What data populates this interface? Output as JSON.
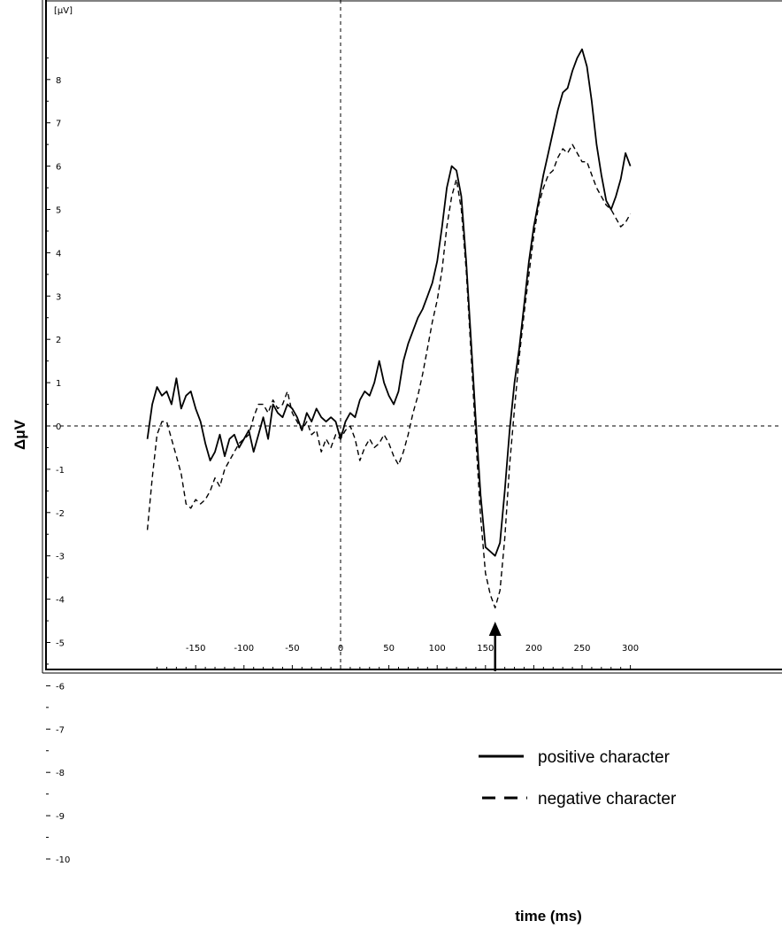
{
  "chart_data": {
    "type": "line",
    "title": "",
    "xlabel": "time (ms)",
    "ylabel": "ΔμV",
    "unit_label": "[μV]",
    "xlim": [
      -200,
      300
    ],
    "ylim": [
      -10.5,
      9.5
    ],
    "x_ticks": [
      -150,
      -100,
      -50,
      0,
      50,
      100,
      150,
      200,
      250,
      300
    ],
    "y_ticks": [
      8,
      7,
      6,
      5,
      4,
      3,
      2,
      1,
      0,
      -1,
      -2,
      -3,
      -4,
      -5,
      -6,
      -7,
      -8,
      -9,
      -10
    ],
    "reference_lines": {
      "x": 0,
      "y": 0
    },
    "legend_position": "bottom-right",
    "annotation": {
      "type": "arrow",
      "x": 160,
      "label": ""
    },
    "series": [
      {
        "name": "positive character",
        "style": "solid",
        "points": [
          [
            -200,
            -0.3
          ],
          [
            -195,
            0.5
          ],
          [
            -190,
            0.9
          ],
          [
            -185,
            0.7
          ],
          [
            -180,
            0.8
          ],
          [
            -175,
            0.5
          ],
          [
            -170,
            1.1
          ],
          [
            -165,
            0.4
          ],
          [
            -160,
            0.7
          ],
          [
            -155,
            0.8
          ],
          [
            -150,
            0.4
          ],
          [
            -145,
            0.1
          ],
          [
            -140,
            -0.4
          ],
          [
            -135,
            -0.8
          ],
          [
            -130,
            -0.6
          ],
          [
            -125,
            -0.2
          ],
          [
            -120,
            -0.7
          ],
          [
            -115,
            -0.3
          ],
          [
            -110,
            -0.2
          ],
          [
            -105,
            -0.5
          ],
          [
            -100,
            -0.3
          ],
          [
            -95,
            -0.1
          ],
          [
            -90,
            -0.6
          ],
          [
            -85,
            -0.2
          ],
          [
            -80,
            0.2
          ],
          [
            -75,
            -0.3
          ],
          [
            -70,
            0.5
          ],
          [
            -65,
            0.3
          ],
          [
            -60,
            0.2
          ],
          [
            -55,
            0.5
          ],
          [
            -50,
            0.4
          ],
          [
            -45,
            0.2
          ],
          [
            -40,
            -0.1
          ],
          [
            -35,
            0.3
          ],
          [
            -30,
            0.1
          ],
          [
            -25,
            0.4
          ],
          [
            -20,
            0.2
          ],
          [
            -15,
            0.1
          ],
          [
            -10,
            0.2
          ],
          [
            -5,
            0.1
          ],
          [
            0,
            -0.3
          ],
          [
            5,
            0.1
          ],
          [
            10,
            0.3
          ],
          [
            15,
            0.2
          ],
          [
            20,
            0.6
          ],
          [
            25,
            0.8
          ],
          [
            30,
            0.7
          ],
          [
            35,
            1.0
          ],
          [
            40,
            1.5
          ],
          [
            45,
            1.0
          ],
          [
            50,
            0.7
          ],
          [
            55,
            0.5
          ],
          [
            60,
            0.8
          ],
          [
            65,
            1.5
          ],
          [
            70,
            1.9
          ],
          [
            75,
            2.2
          ],
          [
            80,
            2.5
          ],
          [
            85,
            2.7
          ],
          [
            90,
            3.0
          ],
          [
            95,
            3.3
          ],
          [
            100,
            3.8
          ],
          [
            105,
            4.6
          ],
          [
            110,
            5.5
          ],
          [
            115,
            6.0
          ],
          [
            120,
            5.9
          ],
          [
            125,
            5.3
          ],
          [
            130,
            3.8
          ],
          [
            135,
            2.0
          ],
          [
            140,
            0.1
          ],
          [
            145,
            -1.6
          ],
          [
            150,
            -2.8
          ],
          [
            155,
            -2.9
          ],
          [
            160,
            -3.0
          ],
          [
            165,
            -2.7
          ],
          [
            170,
            -1.5
          ],
          [
            175,
            -0.1
          ],
          [
            180,
            1.0
          ],
          [
            185,
            1.8
          ],
          [
            190,
            2.8
          ],
          [
            195,
            3.8
          ],
          [
            200,
            4.6
          ],
          [
            205,
            5.2
          ],
          [
            210,
            5.8
          ],
          [
            215,
            6.3
          ],
          [
            220,
            6.8
          ],
          [
            225,
            7.3
          ],
          [
            230,
            7.7
          ],
          [
            235,
            7.8
          ],
          [
            240,
            8.2
          ],
          [
            245,
            8.5
          ],
          [
            250,
            8.7
          ],
          [
            255,
            8.3
          ],
          [
            260,
            7.5
          ],
          [
            265,
            6.5
          ],
          [
            270,
            5.8
          ],
          [
            275,
            5.2
          ],
          [
            280,
            5.0
          ],
          [
            285,
            5.3
          ],
          [
            290,
            5.7
          ],
          [
            295,
            6.3
          ],
          [
            300,
            6.0
          ]
        ]
      },
      {
        "name": "negative character",
        "style": "dashed",
        "points": [
          [
            -200,
            -2.4
          ],
          [
            -195,
            -1.2
          ],
          [
            -190,
            -0.2
          ],
          [
            -185,
            0.1
          ],
          [
            -180,
            0.1
          ],
          [
            -175,
            -0.3
          ],
          [
            -170,
            -0.7
          ],
          [
            -165,
            -1.1
          ],
          [
            -160,
            -1.8
          ],
          [
            -155,
            -1.9
          ],
          [
            -150,
            -1.7
          ],
          [
            -145,
            -1.8
          ],
          [
            -140,
            -1.7
          ],
          [
            -135,
            -1.5
          ],
          [
            -130,
            -1.2
          ],
          [
            -125,
            -1.4
          ],
          [
            -120,
            -1.0
          ],
          [
            -115,
            -0.8
          ],
          [
            -110,
            -0.6
          ],
          [
            -105,
            -0.4
          ],
          [
            -100,
            -0.3
          ],
          [
            -95,
            -0.2
          ],
          [
            -90,
            0.2
          ],
          [
            -85,
            0.5
          ],
          [
            -80,
            0.5
          ],
          [
            -75,
            0.3
          ],
          [
            -70,
            0.6
          ],
          [
            -65,
            0.4
          ],
          [
            -60,
            0.5
          ],
          [
            -55,
            0.8
          ],
          [
            -50,
            0.3
          ],
          [
            -45,
            0.1
          ],
          [
            -40,
            -0.1
          ],
          [
            -35,
            0.1
          ],
          [
            -30,
            -0.2
          ],
          [
            -25,
            -0.1
          ],
          [
            -20,
            -0.6
          ],
          [
            -15,
            -0.3
          ],
          [
            -10,
            -0.5
          ],
          [
            -5,
            -0.2
          ],
          [
            0,
            -0.3
          ],
          [
            5,
            -0.1
          ],
          [
            10,
            0.0
          ],
          [
            15,
            -0.3
          ],
          [
            20,
            -0.8
          ],
          [
            25,
            -0.5
          ],
          [
            30,
            -0.3
          ],
          [
            35,
            -0.5
          ],
          [
            40,
            -0.4
          ],
          [
            45,
            -0.2
          ],
          [
            50,
            -0.4
          ],
          [
            55,
            -0.7
          ],
          [
            60,
            -0.9
          ],
          [
            65,
            -0.6
          ],
          [
            70,
            -0.2
          ],
          [
            75,
            0.3
          ],
          [
            80,
            0.7
          ],
          [
            85,
            1.2
          ],
          [
            90,
            1.8
          ],
          [
            95,
            2.4
          ],
          [
            100,
            2.9
          ],
          [
            105,
            3.6
          ],
          [
            110,
            4.6
          ],
          [
            115,
            5.3
          ],
          [
            120,
            5.7
          ],
          [
            125,
            5.0
          ],
          [
            130,
            3.6
          ],
          [
            135,
            1.7
          ],
          [
            140,
            -0.3
          ],
          [
            145,
            -2.1
          ],
          [
            150,
            -3.4
          ],
          [
            155,
            -3.9
          ],
          [
            160,
            -4.2
          ],
          [
            165,
            -3.8
          ],
          [
            170,
            -2.6
          ],
          [
            175,
            -0.9
          ],
          [
            180,
            0.4
          ],
          [
            185,
            1.6
          ],
          [
            190,
            2.6
          ],
          [
            195,
            3.5
          ],
          [
            200,
            4.4
          ],
          [
            205,
            5.1
          ],
          [
            210,
            5.5
          ],
          [
            215,
            5.8
          ],
          [
            220,
            5.9
          ],
          [
            225,
            6.2
          ],
          [
            230,
            6.4
          ],
          [
            235,
            6.3
          ],
          [
            240,
            6.5
          ],
          [
            245,
            6.3
          ],
          [
            250,
            6.1
          ],
          [
            255,
            6.1
          ],
          [
            260,
            5.8
          ],
          [
            265,
            5.5
          ],
          [
            270,
            5.3
          ],
          [
            275,
            5.1
          ],
          [
            280,
            5.0
          ],
          [
            285,
            4.8
          ],
          [
            290,
            4.6
          ],
          [
            295,
            4.7
          ],
          [
            300,
            4.9
          ]
        ]
      }
    ]
  }
}
